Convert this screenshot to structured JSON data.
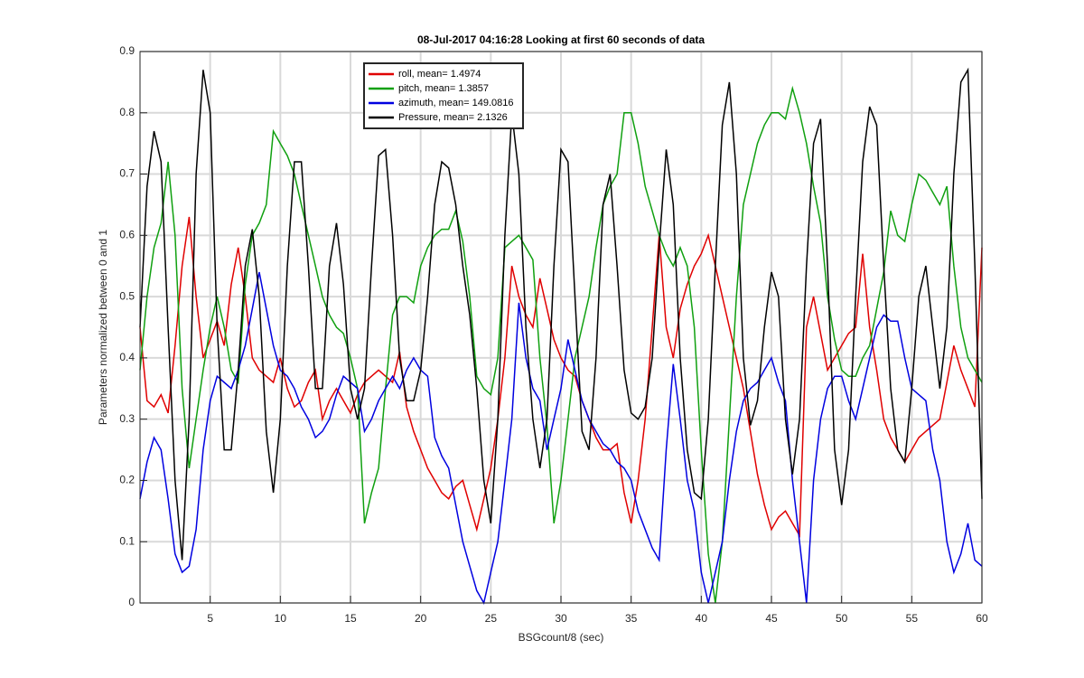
{
  "chart_data": {
    "type": "line",
    "title": "08-Jul-2017 04:16:28 Looking at first 60 seconds of data",
    "x_label": "BSGcount/8 (sec)",
    "y_label": "Parameters normalized between 0 and 1",
    "xlim": [
      0,
      60
    ],
    "ylim": [
      0,
      0.9
    ],
    "xticks": [
      5,
      10,
      15,
      20,
      25,
      30,
      35,
      40,
      45,
      50,
      55,
      60
    ],
    "yticks": [
      0,
      0.1,
      0.2,
      0.3,
      0.4,
      0.5,
      0.6,
      0.7,
      0.8,
      0.9
    ],
    "grid": true,
    "legend_position": "north",
    "x": [
      0,
      0.5,
      1,
      1.5,
      2,
      2.5,
      3,
      3.5,
      4,
      4.5,
      5,
      5.5,
      6,
      6.5,
      7,
      7.5,
      8,
      8.5,
      9,
      9.5,
      10,
      10.5,
      11,
      11.5,
      12,
      12.5,
      13,
      13.5,
      14,
      14.5,
      15,
      15.5,
      16,
      16.5,
      17,
      17.5,
      18,
      18.5,
      19,
      19.5,
      20,
      20.5,
      21,
      21.5,
      22,
      22.5,
      23,
      23.5,
      24,
      24.5,
      25,
      25.5,
      26,
      26.5,
      27,
      27.5,
      28,
      28.5,
      29,
      29.5,
      30,
      30.5,
      31,
      31.5,
      32,
      32.5,
      33,
      33.5,
      34,
      34.5,
      35,
      35.5,
      36,
      36.5,
      37,
      37.5,
      38,
      38.5,
      39,
      39.5,
      40,
      40.5,
      41,
      41.5,
      42,
      42.5,
      43,
      43.5,
      44,
      44.5,
      45,
      45.5,
      46,
      46.5,
      47,
      47.5,
      48,
      48.5,
      49,
      49.5,
      50,
      50.5,
      51,
      51.5,
      52,
      52.5,
      53,
      53.5,
      54,
      54.5,
      55,
      55.5,
      56,
      56.5,
      57,
      57.5,
      58,
      58.5,
      59,
      59.5,
      60
    ],
    "series": [
      {
        "name": "roll, mean= 1.4974",
        "color": "#e00000",
        "values": [
          0.45,
          0.33,
          0.32,
          0.34,
          0.31,
          0.42,
          0.55,
          0.63,
          0.5,
          0.4,
          0.43,
          0.46,
          0.42,
          0.52,
          0.58,
          0.5,
          0.4,
          0.38,
          0.37,
          0.36,
          0.4,
          0.35,
          0.32,
          0.33,
          0.36,
          0.38,
          0.3,
          0.33,
          0.35,
          0.33,
          0.31,
          0.34,
          0.36,
          0.37,
          0.38,
          0.37,
          0.36,
          0.41,
          0.32,
          0.28,
          0.25,
          0.22,
          0.2,
          0.18,
          0.17,
          0.19,
          0.2,
          0.16,
          0.12,
          0.17,
          0.22,
          0.3,
          0.4,
          0.55,
          0.5,
          0.47,
          0.45,
          0.53,
          0.48,
          0.43,
          0.4,
          0.38,
          0.37,
          0.33,
          0.3,
          0.27,
          0.25,
          0.25,
          0.26,
          0.18,
          0.13,
          0.2,
          0.3,
          0.45,
          0.6,
          0.45,
          0.4,
          0.48,
          0.52,
          0.55,
          0.57,
          0.6,
          0.55,
          0.5,
          0.45,
          0.4,
          0.35,
          0.28,
          0.21,
          0.16,
          0.12,
          0.14,
          0.15,
          0.13,
          0.11,
          0.45,
          0.5,
          0.44,
          0.38,
          0.4,
          0.42,
          0.44,
          0.45,
          0.57,
          0.45,
          0.38,
          0.3,
          0.27,
          0.25,
          0.23,
          0.25,
          0.27,
          0.28,
          0.29,
          0.3,
          0.36,
          0.42,
          0.38,
          0.35,
          0.32,
          0.58
        ]
      },
      {
        "name": "pitch, mean= 1.3857",
        "color": "#10a010",
        "values": [
          0.38,
          0.5,
          0.58,
          0.62,
          0.72,
          0.6,
          0.35,
          0.22,
          0.3,
          0.38,
          0.45,
          0.5,
          0.45,
          0.38,
          0.36,
          0.52,
          0.6,
          0.62,
          0.65,
          0.77,
          0.75,
          0.73,
          0.7,
          0.65,
          0.6,
          0.55,
          0.5,
          0.47,
          0.45,
          0.44,
          0.4,
          0.35,
          0.13,
          0.18,
          0.22,
          0.35,
          0.47,
          0.5,
          0.5,
          0.49,
          0.55,
          0.58,
          0.6,
          0.61,
          0.61,
          0.64,
          0.59,
          0.5,
          0.37,
          0.35,
          0.34,
          0.4,
          0.58,
          0.59,
          0.6,
          0.58,
          0.56,
          0.4,
          0.29,
          0.13,
          0.2,
          0.3,
          0.4,
          0.45,
          0.5,
          0.58,
          0.65,
          0.68,
          0.7,
          0.8,
          0.8,
          0.75,
          0.68,
          0.64,
          0.6,
          0.57,
          0.55,
          0.58,
          0.55,
          0.45,
          0.25,
          0.08,
          0,
          0.1,
          0.3,
          0.5,
          0.65,
          0.7,
          0.75,
          0.78,
          0.8,
          0.8,
          0.79,
          0.84,
          0.8,
          0.75,
          0.68,
          0.62,
          0.5,
          0.43,
          0.38,
          0.37,
          0.37,
          0.4,
          0.42,
          0.48,
          0.54,
          0.64,
          0.6,
          0.59,
          0.65,
          0.7,
          0.69,
          0.67,
          0.65,
          0.68,
          0.55,
          0.45,
          0.4,
          0.38,
          0.36
        ]
      },
      {
        "name": "azimuth, mean= 149.0816",
        "color": "#0000e0",
        "values": [
          0.17,
          0.23,
          0.27,
          0.25,
          0.17,
          0.08,
          0.05,
          0.06,
          0.12,
          0.25,
          0.33,
          0.37,
          0.36,
          0.35,
          0.38,
          0.42,
          0.48,
          0.54,
          0.48,
          0.42,
          0.38,
          0.37,
          0.35,
          0.32,
          0.3,
          0.27,
          0.28,
          0.3,
          0.34,
          0.37,
          0.36,
          0.35,
          0.28,
          0.3,
          0.33,
          0.35,
          0.37,
          0.35,
          0.38,
          0.4,
          0.38,
          0.37,
          0.27,
          0.24,
          0.22,
          0.16,
          0.1,
          0.06,
          0.02,
          0,
          0.05,
          0.1,
          0.2,
          0.3,
          0.49,
          0.4,
          0.35,
          0.33,
          0.25,
          0.3,
          0.35,
          0.43,
          0.38,
          0.33,
          0.3,
          0.28,
          0.26,
          0.25,
          0.23,
          0.22,
          0.2,
          0.15,
          0.12,
          0.09,
          0.07,
          0.25,
          0.39,
          0.3,
          0.2,
          0.15,
          0.05,
          0,
          0.05,
          0.1,
          0.2,
          0.28,
          0.33,
          0.35,
          0.36,
          0.38,
          0.4,
          0.36,
          0.33,
          0.2,
          0.1,
          0,
          0.2,
          0.3,
          0.35,
          0.37,
          0.37,
          0.33,
          0.3,
          0.35,
          0.4,
          0.45,
          0.47,
          0.46,
          0.46,
          0.4,
          0.35,
          0.34,
          0.33,
          0.25,
          0.2,
          0.1,
          0.05,
          0.08,
          0.13,
          0.07,
          0.06
        ]
      },
      {
        "name": "Pressure, mean= 2.1326",
        "color": "#000000",
        "values": [
          0.45,
          0.68,
          0.77,
          0.72,
          0.45,
          0.2,
          0.07,
          0.3,
          0.7,
          0.87,
          0.8,
          0.45,
          0.25,
          0.25,
          0.38,
          0.55,
          0.61,
          0.5,
          0.28,
          0.18,
          0.3,
          0.55,
          0.72,
          0.72,
          0.55,
          0.35,
          0.35,
          0.55,
          0.62,
          0.52,
          0.35,
          0.3,
          0.35,
          0.55,
          0.73,
          0.74,
          0.6,
          0.4,
          0.33,
          0.33,
          0.38,
          0.5,
          0.65,
          0.72,
          0.71,
          0.65,
          0.55,
          0.47,
          0.35,
          0.2,
          0.13,
          0.3,
          0.6,
          0.8,
          0.7,
          0.45,
          0.3,
          0.22,
          0.3,
          0.55,
          0.74,
          0.72,
          0.5,
          0.28,
          0.25,
          0.4,
          0.65,
          0.7,
          0.55,
          0.38,
          0.31,
          0.3,
          0.32,
          0.4,
          0.58,
          0.74,
          0.65,
          0.4,
          0.25,
          0.18,
          0.17,
          0.3,
          0.55,
          0.78,
          0.85,
          0.7,
          0.4,
          0.29,
          0.33,
          0.45,
          0.54,
          0.5,
          0.3,
          0.21,
          0.3,
          0.55,
          0.75,
          0.79,
          0.55,
          0.25,
          0.16,
          0.25,
          0.5,
          0.72,
          0.81,
          0.78,
          0.55,
          0.35,
          0.25,
          0.23,
          0.35,
          0.5,
          0.55,
          0.45,
          0.35,
          0.45,
          0.7,
          0.85,
          0.87,
          0.55,
          0.17
        ]
      }
    ]
  }
}
